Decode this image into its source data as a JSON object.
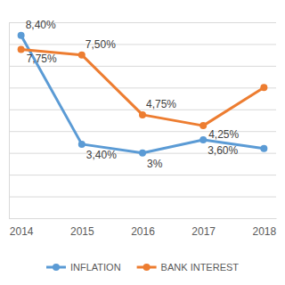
{
  "chart_data": {
    "type": "line",
    "categories": [
      "2014",
      "2015",
      "2016",
      "2017",
      "2018"
    ],
    "series": [
      {
        "name": "INFLATION",
        "color": "#5b9bd5",
        "marker": "circle",
        "values": [
          8.4,
          3.4,
          3,
          3.6,
          3.2
        ],
        "value_labels": [
          "8,40%",
          "3,40%",
          "3%",
          "3,60%",
          null
        ]
      },
      {
        "name": "BANK INTEREST",
        "color": "#ed7d31",
        "marker": "circle",
        "values": [
          7.75,
          7.5,
          4.75,
          4.25,
          6
        ],
        "value_labels": [
          "7,75%",
          "7,50%",
          "4,75%",
          "4,25%",
          null
        ]
      }
    ],
    "ylim": [
      0,
      9
    ],
    "yticks": [
      0,
      1,
      2,
      3,
      4,
      5,
      6,
      7,
      8,
      9
    ],
    "grid": true,
    "legend": "bottom",
    "data_labels": true,
    "tick_labels": "x"
  }
}
